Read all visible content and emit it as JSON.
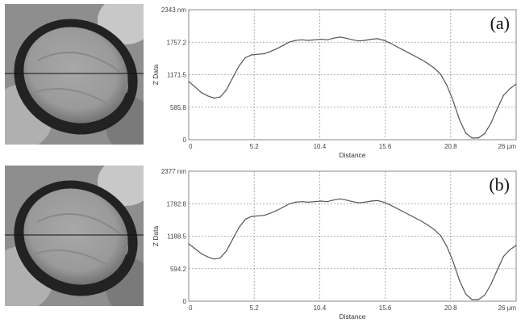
{
  "chart_data": [
    {
      "type": "line",
      "panel_label": "(a)",
      "xlabel": "Distance",
      "ylabel": "Z Data",
      "x_ticks": [
        "0",
        "5.2",
        "10.4",
        "15.6",
        "20.8",
        "26 µm"
      ],
      "y_ticks": [
        "0",
        "585.8",
        "1171.5",
        "1757.2",
        "2343 nm"
      ],
      "xlim": [
        0,
        26
      ],
      "ylim": [
        0,
        2343
      ],
      "grid": true,
      "series": [
        {
          "x": [
            0,
            0.5,
            1,
            1.5,
            2,
            2.5,
            3,
            3.5,
            4,
            4.5,
            5,
            5.5,
            6,
            6.5,
            7,
            7.5,
            8,
            8.5,
            9,
            9.5,
            10,
            10.5,
            11,
            11.5,
            12,
            12.5,
            13,
            13.5,
            14,
            14.5,
            15,
            15.5,
            16,
            16.5,
            17,
            17.5,
            18,
            18.5,
            19,
            19.5,
            20,
            20.5,
            21,
            21.5,
            22,
            22.5,
            23,
            23.5,
            24,
            24.5,
            25,
            25.5,
            26
          ],
          "y": [
            1050,
            950,
            850,
            790,
            750,
            770,
            900,
            1120,
            1330,
            1480,
            1530,
            1540,
            1550,
            1590,
            1640,
            1700,
            1760,
            1790,
            1800,
            1790,
            1800,
            1810,
            1800,
            1830,
            1850,
            1830,
            1800,
            1780,
            1790,
            1810,
            1820,
            1790,
            1740,
            1680,
            1620,
            1560,
            1500,
            1440,
            1370,
            1290,
            1180,
            980,
            700,
            360,
            120,
            30,
            30,
            110,
            300,
            560,
            800,
            920,
            1000
          ]
        }
      ]
    },
    {
      "type": "line",
      "panel_label": "(b)",
      "xlabel": "Distance",
      "ylabel": "Z Data",
      "x_ticks": [
        "0",
        "5.2",
        "10.4",
        "15.6",
        "20.8",
        "26 µm"
      ],
      "y_ticks": [
        "0",
        "594.2",
        "1188.5",
        "1782.8",
        "2377 nm"
      ],
      "xlim": [
        0,
        26
      ],
      "ylim": [
        0,
        2377
      ],
      "grid": true,
      "series": [
        {
          "x": [
            0,
            0.5,
            1,
            1.5,
            2,
            2.5,
            3,
            3.5,
            4,
            4.5,
            5,
            5.5,
            6,
            6.5,
            7,
            7.5,
            8,
            8.5,
            9,
            9.5,
            10,
            10.5,
            11,
            11.5,
            12,
            12.5,
            13,
            13.5,
            14,
            14.5,
            15,
            15.5,
            16,
            16.5,
            17,
            17.5,
            18,
            18.5,
            19,
            19.5,
            20,
            20.5,
            21,
            21.5,
            22,
            22.5,
            23,
            23.5,
            24,
            24.5,
            25,
            25.5,
            26
          ],
          "y": [
            1050,
            960,
            870,
            810,
            770,
            790,
            920,
            1140,
            1350,
            1500,
            1550,
            1560,
            1570,
            1610,
            1660,
            1720,
            1780,
            1810,
            1820,
            1810,
            1820,
            1830,
            1820,
            1850,
            1870,
            1850,
            1820,
            1800,
            1810,
            1830,
            1840,
            1810,
            1760,
            1700,
            1640,
            1580,
            1520,
            1460,
            1390,
            1310,
            1200,
            1000,
            720,
            380,
            130,
            30,
            30,
            110,
            310,
            570,
            820,
            940,
            1020
          ]
        }
      ]
    }
  ]
}
